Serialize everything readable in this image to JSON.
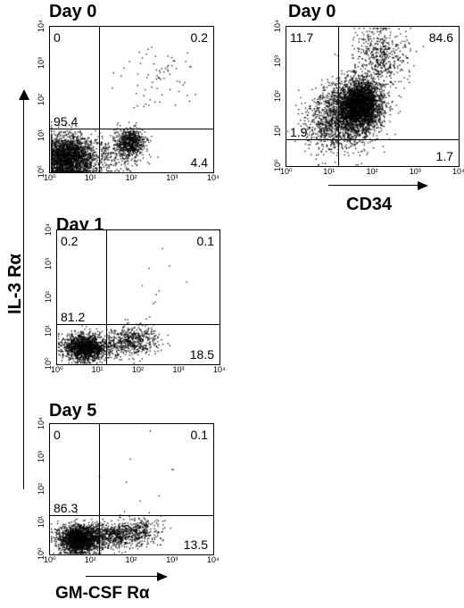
{
  "chart_data": [
    {
      "type": "scatter",
      "title": "Day 0",
      "xlabel": "",
      "ylabel": "",
      "x_scale": "log",
      "y_scale": "log",
      "xlim": [
        1,
        10000
      ],
      "ylim": [
        1,
        10000
      ],
      "x_ticks": [
        "10⁰",
        "10¹",
        "10²",
        "10³",
        "10⁴"
      ],
      "y_ticks": [
        "10⁰",
        "10¹",
        "10²",
        "10³",
        "10⁴"
      ],
      "quadrant_gate": {
        "x": 16,
        "y": 16
      },
      "quadrants": {
        "upper_left": "0",
        "upper_right": "0.2",
        "lower_left": "95.4",
        "lower_right": "4.4"
      },
      "clusters": [
        {
          "cx": 2.5,
          "cy": 2.6,
          "sx": 0.35,
          "sy": 0.3,
          "n": 2600
        },
        {
          "cx": 90,
          "cy": 7,
          "sx": 0.18,
          "sy": 0.18,
          "n": 700
        },
        {
          "cx": 30,
          "cy": 3,
          "sx": 0.35,
          "sy": 0.25,
          "n": 250
        },
        {
          "cx": 400,
          "cy": 400,
          "sx": 0.45,
          "sy": 0.45,
          "n": 70
        }
      ]
    },
    {
      "type": "scatter",
      "title": "Day 0",
      "xlabel": "CD34",
      "ylabel": "",
      "x_scale": "log",
      "y_scale": "log",
      "xlim": [
        1,
        10000
      ],
      "ylim": [
        1,
        10000
      ],
      "x_ticks": [
        "10⁰",
        "10¹",
        "10²",
        "10³",
        "10⁴"
      ],
      "y_ticks": [
        "10⁰",
        "10¹",
        "10²",
        "10³",
        "10⁴"
      ],
      "quadrant_gate": {
        "x": 16,
        "y": 6
      },
      "quadrants": {
        "upper_left": "11.7",
        "upper_right": "84.6",
        "lower_left": "1.9",
        "lower_right": "1.7"
      },
      "clusters": [
        {
          "cx": 50,
          "cy": 60,
          "sx": 0.25,
          "sy": 0.35,
          "n": 3200
        },
        {
          "cx": 20,
          "cy": 25,
          "sx": 0.35,
          "sy": 0.45,
          "n": 1200
        },
        {
          "cx": 150,
          "cy": 1500,
          "sx": 0.3,
          "sy": 0.45,
          "n": 500
        },
        {
          "cx": 8,
          "cy": 15,
          "sx": 0.3,
          "sy": 0.4,
          "n": 250
        }
      ]
    },
    {
      "type": "scatter",
      "title": "Day 1",
      "xlabel": "",
      "ylabel": "",
      "x_scale": "log",
      "y_scale": "log",
      "xlim": [
        1,
        10000
      ],
      "ylim": [
        1,
        10000
      ],
      "x_ticks": [
        "10⁰",
        "10¹",
        "10²",
        "10³",
        "10⁴"
      ],
      "y_ticks": [
        "10⁰",
        "10¹",
        "10²",
        "10³",
        "10⁴"
      ],
      "quadrant_gate": {
        "x": 16,
        "y": 16
      },
      "quadrants": {
        "upper_left": "0.2",
        "upper_right": "0.1",
        "lower_left": "81.2",
        "lower_right": "18.5"
      },
      "clusters": [
        {
          "cx": 4.5,
          "cy": 3.2,
          "sx": 0.25,
          "sy": 0.2,
          "n": 1500
        },
        {
          "cx": 75,
          "cy": 5.5,
          "sx": 0.3,
          "sy": 0.22,
          "n": 450
        },
        {
          "cx": 20,
          "cy": 3.5,
          "sx": 0.3,
          "sy": 0.2,
          "n": 200
        },
        {
          "cx": 300,
          "cy": 300,
          "sx": 0.5,
          "sy": 0.5,
          "n": 10
        }
      ]
    },
    {
      "type": "scatter",
      "title": "Day 5",
      "xlabel": "GM-CSF Rα",
      "ylabel": "IL-3 Rα",
      "x_scale": "log",
      "y_scale": "log",
      "xlim": [
        1,
        10000
      ],
      "ylim": [
        1,
        10000
      ],
      "x_ticks": [
        "10⁰",
        "10¹",
        "10²",
        "10³",
        "10⁴"
      ],
      "y_ticks": [
        "10⁰",
        "10¹",
        "10²",
        "10³",
        "10⁴"
      ],
      "quadrant_gate": {
        "x": 16,
        "y": 16
      },
      "quadrants": {
        "upper_left": "0",
        "upper_right": "0.1",
        "lower_left": "86.3",
        "lower_right": "13.5"
      },
      "clusters": [
        {
          "cx": 5,
          "cy": 3,
          "sx": 0.25,
          "sy": 0.22,
          "n": 2000
        },
        {
          "cx": 40,
          "cy": 4,
          "sx": 0.4,
          "sy": 0.2,
          "n": 700
        },
        {
          "cx": 150,
          "cy": 6,
          "sx": 0.3,
          "sy": 0.2,
          "n": 200
        },
        {
          "cx": 300,
          "cy": 300,
          "sx": 0.5,
          "sy": 0.5,
          "n": 8
        }
      ]
    }
  ],
  "colors": {
    "dots": "#000000",
    "background": "#ffffff"
  }
}
